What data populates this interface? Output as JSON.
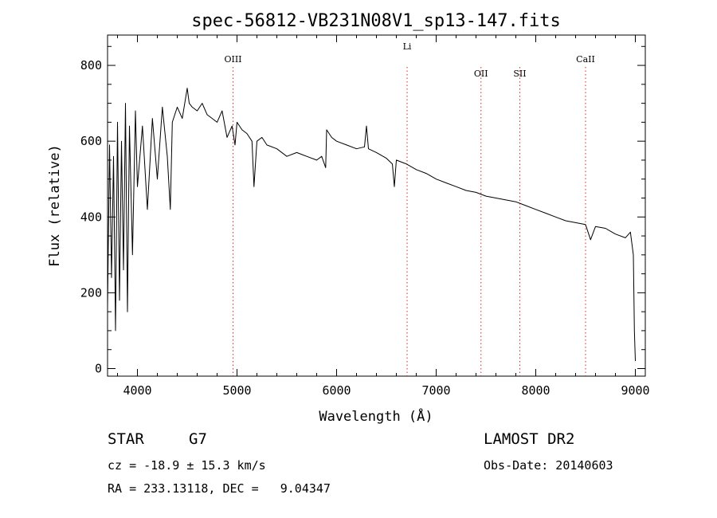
{
  "chart_data": {
    "type": "line",
    "title": "spec-56812-VB231N08V1_sp13-147.fits",
    "xlabel": "Wavelength (Å)",
    "ylabel": "Flux (relative)",
    "xlim": [
      3700,
      9100
    ],
    "ylim": [
      -20,
      880
    ],
    "x_ticks": [
      "4000",
      "5000",
      "6000",
      "7000",
      "8000",
      "9000"
    ],
    "x_tick_values": [
      4000,
      5000,
      6000,
      7000,
      8000,
      9000
    ],
    "y_ticks": [
      "0",
      "200",
      "400",
      "600",
      "800"
    ],
    "y_tick_values": [
      0,
      200,
      400,
      600,
      800
    ],
    "grid": false,
    "line_color": "#000000",
    "marker_color": "#d62728",
    "series": [
      {
        "x": [
          3700,
          3720,
          3740,
          3760,
          3780,
          3800,
          3820,
          3840,
          3860,
          3880,
          3900,
          3920,
          3950,
          3980,
          4000,
          4050,
          4100,
          4150,
          4200,
          4250,
          4300,
          4330,
          4350,
          4400,
          4450,
          4500,
          4520,
          4550,
          4600,
          4650,
          4700,
          4750,
          4800,
          4850,
          4900,
          4950,
          4980,
          5000,
          5050,
          5100,
          5150,
          5170,
          5200,
          5250,
          5300,
          5400,
          5500,
          5600,
          5700,
          5800,
          5850,
          5890,
          5900,
          5950,
          6000,
          6100,
          6200,
          6280,
          6300,
          6320,
          6400,
          6500,
          6560,
          6580,
          6600,
          6700,
          6800,
          6900,
          7000,
          7100,
          7200,
          7300,
          7400,
          7500,
          7600,
          7700,
          7800,
          7900,
          8000,
          8100,
          8200,
          8300,
          8400,
          8500,
          8550,
          8600,
          8700,
          8800,
          8900,
          8950,
          8980,
          8990,
          9000
        ],
        "y": [
          160,
          590,
          240,
          560,
          100,
          650,
          180,
          600,
          260,
          700,
          150,
          640,
          300,
          680,
          480,
          640,
          420,
          660,
          500,
          690,
          560,
          420,
          650,
          690,
          660,
          740,
          700,
          690,
          680,
          700,
          670,
          660,
          650,
          680,
          610,
          640,
          590,
          650,
          630,
          620,
          600,
          480,
          600,
          610,
          590,
          580,
          560,
          570,
          560,
          550,
          560,
          530,
          630,
          610,
          600,
          590,
          580,
          585,
          640,
          580,
          570,
          555,
          540,
          480,
          550,
          540,
          525,
          515,
          500,
          490,
          480,
          470,
          465,
          455,
          450,
          445,
          440,
          430,
          420,
          410,
          400,
          390,
          385,
          380,
          340,
          375,
          370,
          355,
          345,
          360,
          300,
          100,
          20
        ]
      }
    ],
    "line_markers": [
      {
        "label": "OIII",
        "x": 4960
      },
      {
        "label": "Li",
        "x": 6708
      },
      {
        "label": "OII",
        "x": 7450
      },
      {
        "label": "SII",
        "x": 7840
      },
      {
        "label": "CaII",
        "x": 8500
      }
    ]
  },
  "info": {
    "object_class": "STAR",
    "subclass": "G7",
    "survey": "LAMOST DR2",
    "redshift": "cz = -18.9 ± 15.3 km/s",
    "obs_date": "Obs-Date: 20140603",
    "coords": "RA = 233.13118, DEC =   9.04347"
  }
}
